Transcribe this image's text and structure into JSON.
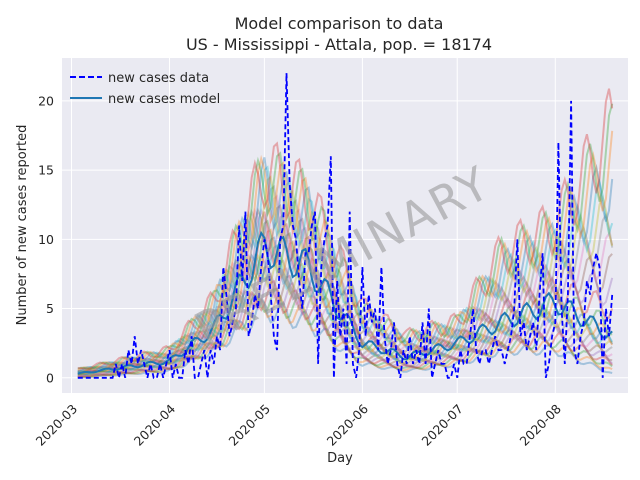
{
  "chart_data": {
    "type": "line",
    "title": "Model comparison to data",
    "subtitle": "US - Mississippi - Attala, pop. = 18174",
    "xlabel": "Day",
    "ylabel": "Number of new cases reported",
    "watermark": "PRELIMINARY",
    "x_range": [
      "2020-02-27",
      "2020-08-24"
    ],
    "ylim": [
      -1.1,
      23.1
    ],
    "x_ticks": [
      {
        "date": "2020-03-01",
        "label": "2020-03"
      },
      {
        "date": "2020-04-01",
        "label": "2020-04"
      },
      {
        "date": "2020-05-01",
        "label": "2020-05"
      },
      {
        "date": "2020-06-01",
        "label": "2020-06"
      },
      {
        "date": "2020-07-01",
        "label": "2020-07"
      },
      {
        "date": "2020-08-01",
        "label": "2020-08"
      }
    ],
    "y_ticks": [
      0,
      5,
      10,
      15,
      20
    ],
    "y_tick_labels": [
      "0",
      "5",
      "10",
      "15",
      "20"
    ],
    "grid": true,
    "legend": {
      "placement": "top-left",
      "entries": [
        {
          "label": "new cases data",
          "style": "dashed",
          "color": "#0000ff"
        },
        {
          "label": "new cases model",
          "style": "solid",
          "color": "#1f77b4"
        }
      ]
    },
    "data_series": {
      "name": "new cases data",
      "color": "#0000ff",
      "start_date": "2020-03-03",
      "values": [
        0,
        0,
        0,
        0,
        0,
        0,
        0,
        0,
        0,
        0,
        0,
        0,
        1,
        0,
        1,
        0,
        2,
        1,
        3,
        1,
        2,
        1,
        0,
        1,
        0,
        0,
        1,
        0,
        1,
        2,
        0,
        1,
        0,
        0,
        2,
        1,
        3,
        0,
        0,
        1,
        2,
        0,
        2,
        1,
        3,
        2,
        8,
        6,
        3,
        4,
        5,
        11,
        7,
        12,
        3,
        4,
        6,
        5,
        8,
        10,
        9,
        6,
        3,
        2,
        10,
        11,
        22,
        14,
        11,
        10,
        7,
        5,
        9,
        9,
        11,
        12,
        1,
        8,
        10,
        11,
        16,
        0,
        7,
        3,
        5,
        1,
        12,
        1,
        0,
        2,
        8,
        3,
        6,
        4,
        5,
        2,
        8,
        3,
        1,
        2,
        4,
        1,
        0,
        2,
        1,
        3,
        1,
        2,
        1,
        4,
        1,
        5,
        0,
        1,
        2,
        1,
        1,
        0,
        0,
        1,
        0,
        2,
        1,
        1,
        3,
        5,
        2,
        1,
        2,
        2,
        1,
        2,
        3,
        2,
        2,
        1,
        2,
        3,
        5,
        10,
        3,
        4,
        2,
        3,
        4,
        2,
        6,
        9,
        0,
        1,
        3,
        4,
        17,
        5,
        1,
        6,
        20,
        2,
        1,
        3,
        4,
        7,
        6,
        8,
        9,
        8,
        0,
        5,
        3,
        6
      ],
      "values_note": "daily counts; leading/trailing entries cover 2020-03-03 through 2020-08-19"
    },
    "model_band": {
      "name": "new cases model",
      "description": "ensemble of model runs",
      "key_dates": [
        "2020-03-03",
        "2020-04-01",
        "2020-04-15",
        "2020-05-01",
        "2020-05-15",
        "2020-06-01",
        "2020-06-15",
        "2020-07-01",
        "2020-07-15",
        "2020-08-01",
        "2020-08-19"
      ],
      "central": [
        0.3,
        1.2,
        3.5,
        9.5,
        8.0,
        2.5,
        1.5,
        2.5,
        4.0,
        5.5,
        3.0
      ],
      "upper": [
        0.6,
        2.0,
        5.5,
        15.0,
        13.0,
        5.0,
        3.0,
        4.0,
        9.0,
        11.0,
        18.2
      ],
      "lower": [
        0.0,
        0.5,
        2.0,
        5.0,
        4.0,
        1.0,
        0.5,
        1.0,
        2.0,
        2.0,
        0.3
      ]
    },
    "colors": {
      "plot_background": "#eaeaf2",
      "grid": "#ffffff",
      "data_line": "#0000ff",
      "model_line": "#1f77b4"
    }
  }
}
